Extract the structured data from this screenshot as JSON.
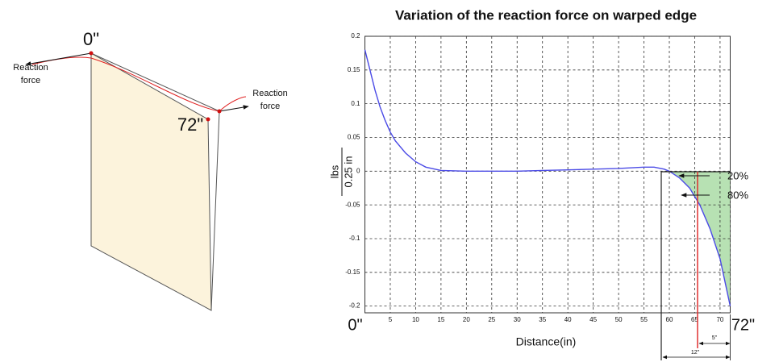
{
  "chart_data": {
    "type": "line",
    "title": "Variation of the reaction force on warped edge",
    "xlabel": "Distance(in)",
    "ylabel": [
      "lbs",
      "0.25 in"
    ],
    "x": [
      0,
      1,
      2,
      3,
      4,
      5,
      6,
      8,
      10,
      12,
      15,
      20,
      25,
      30,
      35,
      40,
      45,
      50,
      55,
      57,
      59,
      60,
      62,
      64,
      66,
      68,
      70,
      72
    ],
    "series": [
      {
        "color": "#4b4be6",
        "values": [
          0.18,
          0.15,
          0.12,
          0.095,
          0.075,
          0.058,
          0.045,
          0.027,
          0.014,
          0.006,
          0.001,
          0,
          0,
          0,
          0.001,
          0.002,
          0.003,
          0.004,
          0.006,
          0.006,
          0.003,
          0,
          -0.01,
          -0.025,
          -0.05,
          -0.085,
          -0.13,
          -0.2
        ]
      }
    ],
    "xlim": [
      0,
      72
    ],
    "xticks": [
      {
        "value": 0,
        "label": "0\""
      },
      5,
      10,
      15,
      20,
      25,
      30,
      35,
      40,
      45,
      50,
      55,
      60,
      65,
      70,
      {
        "value": 72,
        "label": "72\""
      }
    ],
    "ylim": [
      -0.21,
      0.2
    ],
    "yticks": [
      0.2,
      0.15,
      0.1,
      0.05,
      0,
      -0.05,
      -0.1,
      -0.15,
      -0.2
    ],
    "grid": true,
    "annotations": [
      "20%",
      "80%",
      "5\"",
      "12\""
    ]
  },
  "diagram": {
    "start_label": "0\"",
    "end_label": "72\"",
    "reaction_force_left": [
      "Reaction",
      "force"
    ],
    "reaction_force_right": [
      "Reaction",
      "force"
    ]
  }
}
